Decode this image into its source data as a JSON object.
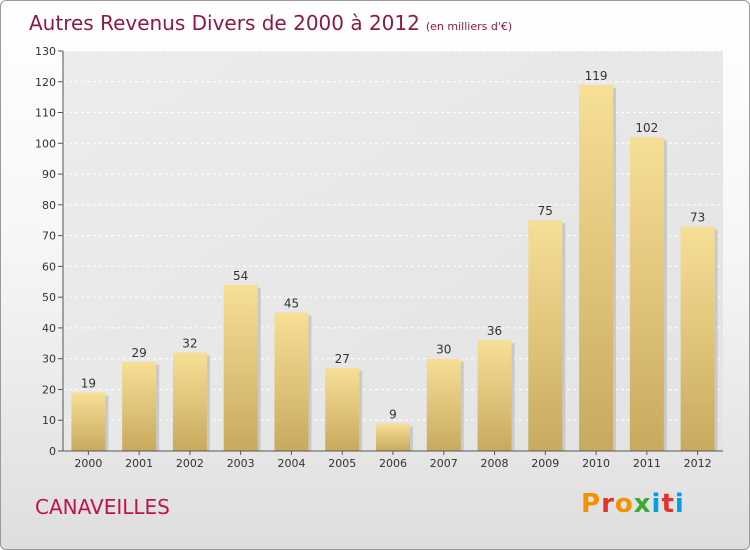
{
  "header": {
    "title": "Autres Revenus Divers de 2000 à 2012",
    "subtitle": "(en milliers d'€)"
  },
  "footer": {
    "commune": "CANAVEILLES",
    "logo_letters": [
      "P",
      "r",
      "o",
      "x",
      "i",
      "t",
      "i"
    ],
    "logo_colors": [
      "#f39200",
      "#e6332a",
      "#f39200",
      "#3aaa35",
      "#009fe3",
      "#e6332a",
      "#009fe3"
    ]
  },
  "chart_data": {
    "type": "bar",
    "categories": [
      "2000",
      "2001",
      "2002",
      "2003",
      "2004",
      "2005",
      "2006",
      "2007",
      "2008",
      "2009",
      "2010",
      "2011",
      "2012"
    ],
    "values": [
      19,
      29,
      32,
      54,
      45,
      27,
      9,
      30,
      36,
      75,
      119,
      102,
      73
    ],
    "title": "Autres Revenus Divers de 2000 à 2012",
    "ylim": [
      0,
      130
    ],
    "yticks": [
      0,
      10,
      20,
      30,
      40,
      50,
      60,
      70,
      80,
      90,
      100,
      110,
      120,
      130
    ],
    "grid": true,
    "bar_color": "#dcc27a"
  }
}
